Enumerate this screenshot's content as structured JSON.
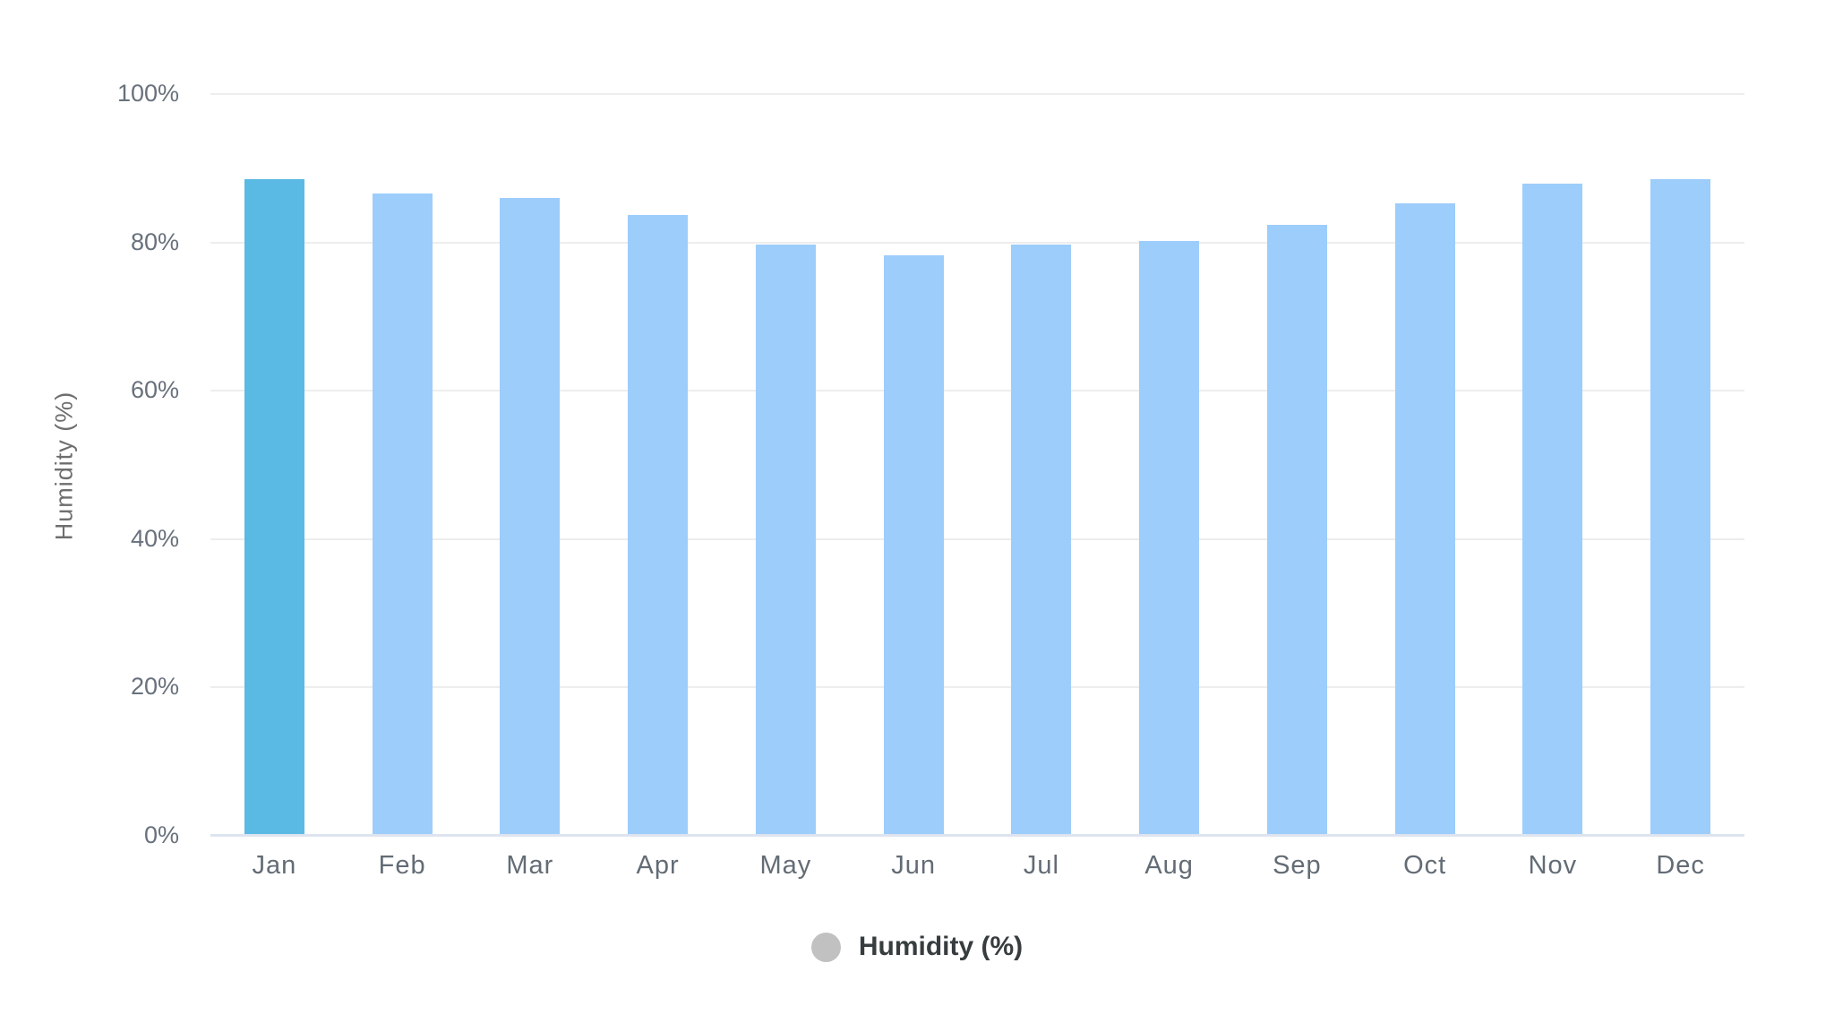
{
  "chart_data": {
    "type": "bar",
    "title": "",
    "categories": [
      "Jan",
      "Feb",
      "Mar",
      "Apr",
      "May",
      "Jun",
      "Jul",
      "Aug",
      "Sep",
      "Oct",
      "Nov",
      "Dec"
    ],
    "series": [
      {
        "name": "Humidity (%)",
        "values": [
          88.4,
          86.5,
          85.9,
          83.6,
          79.6,
          78.1,
          79.6,
          80.1,
          82.3,
          85.1,
          87.8,
          88.4
        ]
      }
    ],
    "xlabel": "",
    "ylabel": "Humidity (%)",
    "ylim": [
      0,
      100
    ],
    "yticks": [
      "100%",
      "80%",
      "60%",
      "40%",
      "20%",
      "0%"
    ],
    "grid": true,
    "legend": {
      "position": "bottom",
      "label": "Humidity (%)",
      "marker_color": "#c1c1c1"
    },
    "colors": {
      "bar": "#9DCDFB",
      "highlight_bar": "#5ABAE4",
      "highlight_index": 0,
      "gridline": "#ededed",
      "axis_line": "#dde4f0"
    }
  }
}
